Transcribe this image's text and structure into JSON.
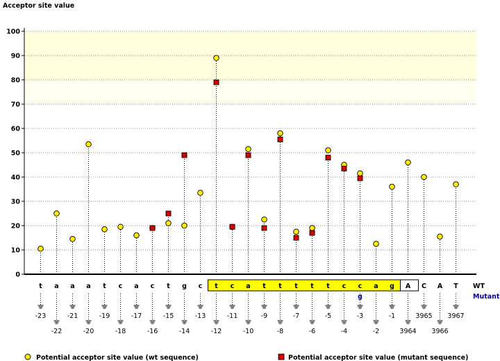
{
  "chart_data": {
    "type": "scatter",
    "ylabel": "Acceptor site value",
    "ylim": [
      0,
      100
    ],
    "yticks": [
      "0",
      "10",
      "20",
      "30",
      "40",
      "50",
      "60",
      "70",
      "80",
      "90",
      "100"
    ],
    "highlight_band_high": [
      80,
      100
    ],
    "highlight_band_low": [
      70,
      80
    ],
    "row_labels": {
      "wt": "WT",
      "mutant": "Mutant"
    },
    "positions": [
      {
        "base": "t",
        "pos": "-23",
        "wt": 10.5
      },
      {
        "base": "a",
        "pos": "-22",
        "wt": 25
      },
      {
        "base": "a",
        "pos": "-21",
        "wt": 14.5
      },
      {
        "base": "a",
        "pos": "-20",
        "wt": 53.5
      },
      {
        "base": "t",
        "pos": "-19",
        "wt": 18.5
      },
      {
        "base": "c",
        "pos": "-18",
        "wt": 19.5
      },
      {
        "base": "a",
        "pos": "-17",
        "wt": 16
      },
      {
        "base": "c",
        "pos": "-16",
        "wt": 19,
        "mut": 19
      },
      {
        "base": "t",
        "pos": "-15",
        "wt": 21,
        "mut": 25
      },
      {
        "base": "g",
        "pos": "-14",
        "wt": 20,
        "mut": 49
      },
      {
        "base": "c",
        "pos": "-13",
        "wt": 33.5
      },
      {
        "base": "t",
        "pos": "-12",
        "wt": 89,
        "mut": 79,
        "boxed": true
      },
      {
        "base": "c",
        "pos": "-11",
        "wt": 19.5,
        "mut": 19.5,
        "boxed": true
      },
      {
        "base": "a",
        "pos": "-10",
        "wt": 51.5,
        "mut": 49,
        "boxed": true
      },
      {
        "base": "t",
        "pos": "-9",
        "wt": 22.5,
        "mut": 19,
        "boxed": true
      },
      {
        "base": "t",
        "pos": "-8",
        "wt": 58,
        "mut": 55.5,
        "boxed": true
      },
      {
        "base": "t",
        "pos": "-7",
        "wt": 17.5,
        "mut": 15,
        "boxed": true
      },
      {
        "base": "t",
        "pos": "-6",
        "wt": 19,
        "mut": 17,
        "boxed": true
      },
      {
        "base": "t",
        "pos": "-5",
        "wt": 51,
        "mut": 48,
        "boxed": true
      },
      {
        "base": "c",
        "pos": "-4",
        "wt": 45,
        "mut": 43.5,
        "boxed": true
      },
      {
        "base": "c",
        "pos": "-3",
        "wt": 41.5,
        "mut": 39.5,
        "boxed": true,
        "mutant_base": "g"
      },
      {
        "base": "a",
        "pos": "-2",
        "wt": 12.5,
        "boxed": true
      },
      {
        "base": "g",
        "pos": "-1",
        "wt": 36,
        "boxed": true
      },
      {
        "base": "A",
        "pos": "3964",
        "wt": 46
      },
      {
        "base": "C",
        "pos": "3965",
        "wt": 40
      },
      {
        "base": "A",
        "pos": "3966",
        "wt": 15.5
      },
      {
        "base": "T",
        "pos": "3967",
        "wt": 37
      }
    ],
    "legend": [
      {
        "label": "Potential acceptor site value (wt sequence)",
        "marker": "circle",
        "color": "#ffee00"
      },
      {
        "label": "Potential acceptor site value (mutant sequence)",
        "marker": "square",
        "color": "#dd0000"
      }
    ],
    "colors": {
      "wt_marker": "#ffee00",
      "mut_marker": "#dd0000",
      "band_high": "#ffffdd",
      "band_low": "#fffff0",
      "box_fill": "#ffff00",
      "mutant_text": "#000099"
    }
  }
}
